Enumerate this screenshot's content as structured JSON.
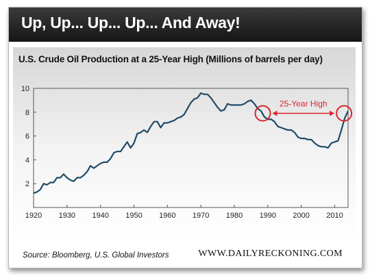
{
  "banner": {
    "title": "Up, Up... Up... Up... And Away!"
  },
  "footer": {
    "source": "Source: Bloomberg, U.S. Global Investors",
    "brand": "WWW.DAILYRECKONING.COM"
  },
  "colors": {
    "banner": "#222222",
    "line": "#1f4a66",
    "annotation": "#d8262e"
  },
  "chart_data": {
    "type": "line",
    "title": "U.S. Crude Oil Production at a 25-Year High (Millions of barrels per day)",
    "xlabel": "",
    "ylabel": "",
    "xlim": [
      1920,
      2014
    ],
    "ylim": [
      0,
      10
    ],
    "x_ticks": [
      1920,
      1930,
      1940,
      1950,
      1960,
      1970,
      1980,
      1990,
      2000,
      2010
    ],
    "y_ticks": [
      2,
      4,
      6,
      8,
      10
    ],
    "grid": false,
    "legend": "none",
    "series": [
      {
        "x": [
          1920,
          1921,
          1922,
          1923,
          1924,
          1925,
          1926,
          1927,
          1928,
          1929,
          1930,
          1931,
          1932,
          1933,
          1934,
          1935,
          1936,
          1937,
          1938,
          1939,
          1940,
          1941,
          1942,
          1943,
          1944,
          1945,
          1946,
          1947,
          1948,
          1949,
          1950,
          1951,
          1952,
          1953,
          1954,
          1955,
          1956,
          1957,
          1958,
          1959,
          1960,
          1961,
          1962,
          1963,
          1964,
          1965,
          1966,
          1967,
          1968,
          1969,
          1970,
          1971,
          1972,
          1973,
          1974,
          1975,
          1976,
          1977,
          1978,
          1979,
          1980,
          1981,
          1982,
          1983,
          1984,
          1985,
          1986,
          1987,
          1988,
          1989,
          1990,
          1991,
          1992,
          1993,
          1994,
          1995,
          1996,
          1997,
          1998,
          1999,
          2000,
          2001,
          2002,
          2003,
          2004,
          2005,
          2006,
          2007,
          2008,
          2009,
          2010,
          2011,
          2012,
          2013,
          2014
        ],
        "values": [
          1.2,
          1.3,
          1.5,
          2.0,
          1.9,
          2.1,
          2.1,
          2.5,
          2.5,
          2.8,
          2.5,
          2.3,
          2.2,
          2.5,
          2.5,
          2.7,
          3.0,
          3.5,
          3.3,
          3.5,
          3.7,
          3.8,
          3.8,
          4.1,
          4.6,
          4.7,
          4.7,
          5.1,
          5.5,
          5.0,
          5.4,
          6.2,
          6.3,
          6.5,
          6.3,
          6.8,
          7.2,
          7.2,
          6.7,
          7.1,
          7.1,
          7.2,
          7.3,
          7.5,
          7.6,
          7.8,
          8.3,
          8.8,
          9.1,
          9.2,
          9.6,
          9.5,
          9.5,
          9.2,
          8.8,
          8.4,
          8.1,
          8.2,
          8.7,
          8.6,
          8.6,
          8.6,
          8.6,
          8.7,
          8.9,
          9.0,
          8.7,
          8.3,
          8.1,
          7.6,
          7.4,
          7.4,
          7.2,
          6.8,
          6.7,
          6.6,
          6.5,
          6.5,
          6.3,
          5.9,
          5.8,
          5.8,
          5.7,
          5.7,
          5.4,
          5.2,
          5.1,
          5.1,
          5.0,
          5.4,
          5.5,
          5.6,
          6.5,
          7.5,
          8.1
        ]
      }
    ],
    "annotations": [
      {
        "text": "25-Year High"
      }
    ]
  }
}
